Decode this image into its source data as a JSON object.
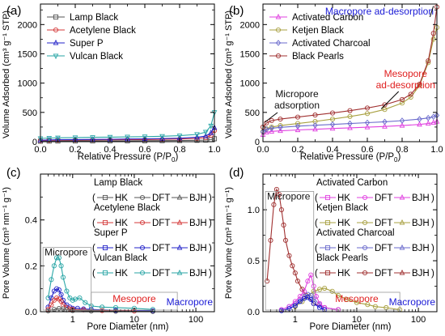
{
  "figure": {
    "panel_labels": [
      "(a)",
      "(b)",
      "(c)",
      "(d)"
    ]
  },
  "chart_data": [
    {
      "panel": "(a)",
      "type": "line",
      "xlabel": "Relative Pressure (P/P",
      "xlabel_sub": "0",
      "xlabel_end": ")",
      "ylabel": "Volume Adsorbed (cm³ g⁻¹ STP)",
      "xlim": [
        0,
        1.0
      ],
      "ylim": [
        0,
        2350
      ],
      "xticks": [
        0.0,
        0.2,
        0.4,
        0.6,
        0.8,
        1.0
      ],
      "xtick_labels": [
        "0.0",
        "0.2",
        "0.4",
        "0.6",
        "0.8",
        "1.0"
      ],
      "yticks": [
        0,
        500,
        1000,
        1500,
        2000
      ],
      "ytick_labels": [
        "0",
        "500",
        "1000",
        "1500",
        "2000"
      ],
      "legend_position": "top-left",
      "series": [
        {
          "name": "Lamp Black",
          "color": "#555555",
          "marker": "square",
          "x": [
            0.0,
            0.05,
            0.1,
            0.2,
            0.3,
            0.4,
            0.5,
            0.6,
            0.7,
            0.8,
            0.9,
            0.95,
            0.98,
            1.0
          ],
          "y": [
            8,
            10,
            11,
            12,
            13,
            14,
            15,
            16,
            18,
            20,
            24,
            28,
            35,
            50
          ]
        },
        {
          "name": "Acetylene Black",
          "color": "#d43a3a",
          "marker": "circle",
          "x": [
            0.0,
            0.05,
            0.1,
            0.2,
            0.3,
            0.4,
            0.5,
            0.6,
            0.7,
            0.8,
            0.9,
            0.95,
            0.98,
            1.0
          ],
          "y": [
            20,
            24,
            26,
            28,
            30,
            32,
            34,
            36,
            40,
            45,
            55,
            70,
            110,
            190
          ]
        },
        {
          "name": "Super P",
          "color": "#2323c8",
          "marker": "triangle",
          "x": [
            0.0,
            0.05,
            0.1,
            0.2,
            0.3,
            0.4,
            0.5,
            0.6,
            0.7,
            0.8,
            0.9,
            0.95,
            0.98,
            1.0
          ],
          "y": [
            25,
            30,
            33,
            36,
            39,
            42,
            45,
            48,
            53,
            60,
            75,
            95,
            150,
            240
          ]
        },
        {
          "name": "Vulcan Black",
          "color": "#2aa6a6",
          "marker": "triangle-down",
          "x": [
            0.0,
            0.05,
            0.1,
            0.2,
            0.3,
            0.4,
            0.5,
            0.6,
            0.7,
            0.8,
            0.9,
            0.95,
            0.98,
            1.0
          ],
          "y": [
            55,
            62,
            66,
            70,
            74,
            78,
            82,
            86,
            93,
            102,
            125,
            165,
            270,
            500
          ]
        }
      ]
    },
    {
      "panel": "(b)",
      "type": "line",
      "xlabel": "Relative Pressure (P/P",
      "xlabel_sub": "0",
      "xlabel_end": ")",
      "ylabel": "Volume Adsorbed (cm³ g⁻¹ STP)",
      "xlim": [
        0,
        1.0
      ],
      "ylim": [
        0,
        2350
      ],
      "xticks": [
        0.0,
        0.2,
        0.4,
        0.6,
        0.8,
        1.0
      ],
      "xtick_labels": [
        "0.0",
        "0.2",
        "0.4",
        "0.6",
        "0.8",
        "1.0"
      ],
      "yticks": [
        0,
        500,
        1000,
        1500,
        2000
      ],
      "ytick_labels": [
        "0",
        "500",
        "1000",
        "1500",
        "2000"
      ],
      "legend_position": "top-left",
      "annotations": [
        {
          "text": "Macropore ad-desorption",
          "color": "#1a1ad6",
          "x": 0.98,
          "y": 2260
        },
        {
          "text": "Micropore",
          "text2": "adsorption",
          "color": "#111111",
          "x": 0.01,
          "y": 330
        },
        {
          "text": "Mesopore",
          "text2": "ad-desorption",
          "color": "#e02020",
          "x": 0.68,
          "y": 560
        }
      ],
      "series": [
        {
          "name": "Activated Carbon",
          "color": "#e040e0",
          "marker": "triangle",
          "x": [
            0.0,
            0.02,
            0.05,
            0.1,
            0.2,
            0.3,
            0.4,
            0.5,
            0.6,
            0.7,
            0.8,
            0.9,
            0.95,
            0.98,
            1.0
          ],
          "y": [
            120,
            160,
            175,
            185,
            200,
            212,
            225,
            236,
            248,
            260,
            275,
            295,
            310,
            325,
            345
          ]
        },
        {
          "name": "Ketjen Black",
          "color": "#a8a040",
          "marker": "circle",
          "x": [
            0.0,
            0.02,
            0.05,
            0.1,
            0.2,
            0.3,
            0.4,
            0.5,
            0.6,
            0.7,
            0.8,
            0.85,
            0.9,
            0.95,
            0.98,
            1.0
          ],
          "y": [
            170,
            220,
            250,
            275,
            310,
            345,
            385,
            430,
            480,
            550,
            660,
            760,
            960,
            1350,
            1750,
            1950
          ]
        },
        {
          "name": "Activated Charcoal",
          "color": "#6a6acc",
          "marker": "diamond",
          "x": [
            0.0,
            0.02,
            0.05,
            0.1,
            0.2,
            0.3,
            0.4,
            0.5,
            0.6,
            0.7,
            0.8,
            0.9,
            0.95,
            0.98,
            1.0
          ],
          "y": [
            170,
            210,
            230,
            245,
            265,
            280,
            295,
            310,
            325,
            340,
            360,
            385,
            405,
            425,
            450
          ]
        },
        {
          "name": "Black Pearls",
          "color": "#a03030",
          "marker": "circle",
          "x": [
            0.0,
            0.02,
            0.05,
            0.1,
            0.2,
            0.3,
            0.4,
            0.5,
            0.6,
            0.7,
            0.8,
            0.85,
            0.9,
            0.95,
            0.98,
            1.0
          ],
          "y": [
            250,
            320,
            360,
            385,
            420,
            455,
            490,
            530,
            575,
            630,
            720,
            810,
            980,
            1380,
            1850,
            2300
          ]
        }
      ]
    },
    {
      "panel": "(c)",
      "type": "line",
      "xscale": "log",
      "xlabel": "Pore Diameter (nm)",
      "ylabel": "Pore Volume (cm³ nm⁻¹ g⁻¹)",
      "xlim": [
        0.3,
        200
      ],
      "ylim": [
        0,
        0.6
      ],
      "xticks": [
        1,
        10,
        100
      ],
      "xtick_labels": [
        "1",
        "10",
        "100"
      ],
      "yticks": [
        0.0,
        0.2,
        0.4
      ],
      "ytick_labels": [
        "0.0",
        "0.2",
        "0.4"
      ],
      "legend_position": "top-right",
      "method_labels": [
        "HK",
        "DFT",
        "BJH"
      ],
      "annotations": [
        {
          "text": "Micropore",
          "color": "#111111"
        },
        {
          "text": "Mesopore",
          "color": "#e02020"
        },
        {
          "text": "Macropore",
          "color": "#1a1ad6"
        }
      ],
      "groups": [
        {
          "name": "Lamp Black",
          "color": "#555555"
        },
        {
          "name": "Acetylene Black",
          "color": "#d43a3a"
        },
        {
          "name": "Super P",
          "color": "#2323c8"
        },
        {
          "name": "Vulcan Black",
          "color": "#2aa6a6"
        }
      ],
      "series": [
        {
          "group": "Vulcan Black",
          "color": "#2aa6a6",
          "x": [
            0.4,
            0.45,
            0.5,
            0.55,
            0.6,
            0.65,
            0.7,
            0.8,
            0.9,
            1.0,
            1.1,
            1.3,
            1.6,
            2.0,
            3,
            5,
            10,
            20
          ],
          "y": [
            0.06,
            0.14,
            0.2,
            0.235,
            0.235,
            0.2,
            0.15,
            0.09,
            0.06,
            0.05,
            0.055,
            0.06,
            0.04,
            0.025,
            0.02,
            0.018,
            0.015,
            0.01
          ]
        },
        {
          "group": "Super P",
          "color": "#2323c8",
          "x": [
            0.4,
            0.45,
            0.5,
            0.55,
            0.6,
            0.65,
            0.7,
            0.8,
            0.9,
            1.0,
            1.2,
            1.5,
            2,
            5,
            20
          ],
          "y": [
            0.02,
            0.06,
            0.09,
            0.1,
            0.095,
            0.075,
            0.05,
            0.03,
            0.02,
            0.015,
            0.015,
            0.012,
            0.01,
            0.006,
            0.004
          ]
        },
        {
          "group": "Acetylene Black",
          "color": "#d43a3a",
          "x": [
            0.4,
            0.45,
            0.5,
            0.55,
            0.6,
            0.65,
            0.7,
            0.8,
            0.9,
            1.0,
            1.5,
            3,
            10
          ],
          "y": [
            0.01,
            0.03,
            0.05,
            0.06,
            0.055,
            0.045,
            0.03,
            0.018,
            0.012,
            0.01,
            0.008,
            0.005,
            0.003
          ]
        },
        {
          "group": "Lamp Black",
          "color": "#555555",
          "x": [
            0.4,
            0.5,
            0.6,
            0.7,
            0.8,
            1.0,
            2,
            5,
            20
          ],
          "y": [
            0.004,
            0.01,
            0.014,
            0.012,
            0.008,
            0.005,
            0.003,
            0.002,
            0.001
          ]
        }
      ]
    },
    {
      "panel": "(d)",
      "type": "line",
      "xscale": "log",
      "xlabel": "Pore Diameter (nm)",
      "ylabel": "Pore Volume (cm³ nm⁻¹ g⁻¹)",
      "xlim": [
        0.3,
        200
      ],
      "ylim": [
        0,
        1.35
      ],
      "xticks": [
        1,
        10,
        100
      ],
      "xtick_labels": [
        "1",
        "10",
        "100"
      ],
      "yticks": [
        0.0,
        0.5,
        1.0
      ],
      "ytick_labels": [
        "0.0",
        "0.5",
        "1.0"
      ],
      "legend_position": "top-right",
      "method_labels": [
        "HK",
        "DFT",
        "BJH"
      ],
      "annotations": [
        {
          "text": "Micropore",
          "color": "#111111"
        },
        {
          "text": "Mesopore",
          "color": "#e02020"
        },
        {
          "text": "Macropore",
          "color": "#1a1ad6"
        }
      ],
      "groups": [
        {
          "name": "Activated Carbon",
          "color": "#e040e0"
        },
        {
          "name": "Ketjen Black",
          "color": "#a8a040"
        },
        {
          "name": "Activated Charcoal",
          "color": "#6a6acc"
        },
        {
          "name": "Black Pearls",
          "color": "#a03030"
        }
      ],
      "series": [
        {
          "group": "Black Pearls",
          "color": "#a03030",
          "x": [
            0.35,
            0.4,
            0.45,
            0.5,
            0.55,
            0.6,
            0.65,
            0.7,
            0.8,
            0.9,
            1.0,
            1.1,
            1.3,
            1.5,
            2,
            3,
            5
          ],
          "y": [
            0.3,
            0.7,
            1.05,
            1.2,
            1.15,
            1.0,
            0.85,
            0.7,
            0.55,
            0.45,
            0.38,
            0.3,
            0.22,
            0.16,
            0.08,
            0.04,
            0.02
          ]
        },
        {
          "group": "Ketjen Black",
          "color": "#a8a040",
          "x": [
            1.0,
            1.3,
            1.6,
            2.0,
            2.5,
            3,
            4,
            5,
            7,
            10,
            15,
            20,
            30,
            50
          ],
          "y": [
            0.05,
            0.1,
            0.15,
            0.2,
            0.22,
            0.23,
            0.2,
            0.16,
            0.12,
            0.09,
            0.07,
            0.05,
            0.04,
            0.02
          ]
        },
        {
          "group": "Activated Charcoal",
          "color": "#6a6acc",
          "x": [
            0.6,
            0.8,
            1.0,
            1.2,
            1.4,
            1.6,
            1.8,
            2.0,
            2.5,
            3,
            5
          ],
          "y": [
            0.02,
            0.05,
            0.08,
            0.12,
            0.15,
            0.17,
            0.16,
            0.13,
            0.07,
            0.04,
            0.02
          ]
        },
        {
          "group": "Activated Carbon",
          "color": "#e040e0",
          "x": [
            0.6,
            0.8,
            1.0,
            1.2,
            1.4,
            1.6,
            1.8,
            2.0,
            2.2,
            2.5,
            3,
            5
          ],
          "y": [
            0.02,
            0.05,
            0.1,
            0.15,
            0.2,
            0.3,
            0.36,
            0.25,
            0.15,
            0.08,
            0.04,
            0.02
          ]
        },
        {
          "group": "Activated Carbon",
          "color": "#1a1ad6",
          "x": [
            0.6,
            0.8,
            1.0,
            1.2,
            1.4,
            1.6,
            1.8,
            2.0,
            2.5,
            3
          ],
          "y": [
            0.01,
            0.03,
            0.06,
            0.1,
            0.13,
            0.14,
            0.12,
            0.08,
            0.04,
            0.02
          ]
        }
      ]
    }
  ]
}
